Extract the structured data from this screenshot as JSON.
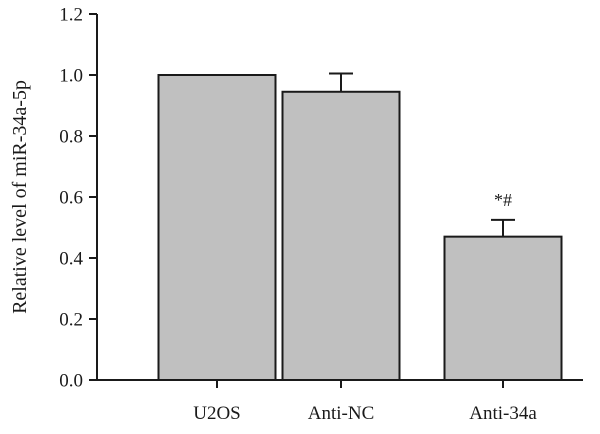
{
  "chart_data": {
    "type": "bar",
    "title": "",
    "xlabel": "",
    "ylabel": "Relative level of miR-34a-5p",
    "ylim": [
      0,
      1.2
    ],
    "yticks": [
      0.0,
      0.2,
      0.4,
      0.6,
      0.8,
      1.0,
      1.2
    ],
    "ytick_labels": [
      "0.0",
      "0.2",
      "0.4",
      "0.6",
      "0.8",
      "1.0",
      "1.2"
    ],
    "categories": [
      "U2OS",
      "Anti-NC",
      "Anti-34a"
    ],
    "values": [
      1.0,
      0.945,
      0.47
    ],
    "error_upper": [
      0.0,
      0.06,
      0.055
    ],
    "annotations": [
      "",
      "",
      "*#"
    ],
    "bar_color": "#c0c0c0",
    "edge_color": "#1a1a1a",
    "grid": false,
    "legend": "none"
  }
}
